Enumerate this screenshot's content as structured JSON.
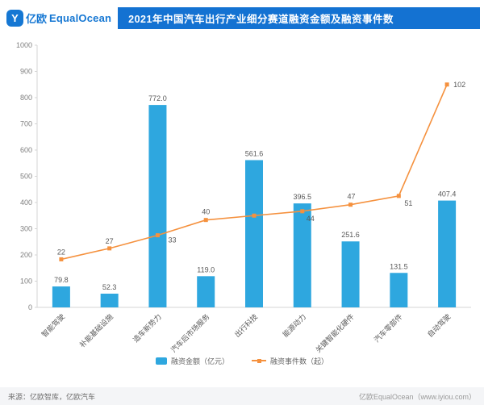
{
  "header": {
    "logo": {
      "icon_glyph": "Y",
      "brand_cn": "亿欧",
      "brand_en": "EqualOcean"
    },
    "banner_title": "2021年中国汽车出行产业细分赛道融资金额及融资事件数"
  },
  "chart_data": {
    "type": "bar+line",
    "title": "2021年中国汽车出行产业细分赛道融资金额及融资事件数",
    "categories": [
      "智能驾驶",
      "补能基础设施",
      "造车新势力",
      "汽车后市场服务",
      "出行科技",
      "能源动力",
      "关键智能化硬件",
      "汽车零部件",
      "自动驾驶"
    ],
    "series": [
      {
        "name": "融资金额（亿元）",
        "type": "bar",
        "color": "#2EA7DF",
        "values": [
          79.8,
          52.3,
          772.0,
          119.0,
          561.6,
          396.5,
          251.6,
          131.5,
          407.4
        ],
        "labels": [
          "79.8",
          "52.3",
          "772.0",
          "119.0",
          "561.6",
          "396.5",
          "251.6",
          "131.5",
          "407.4"
        ]
      },
      {
        "name": "融资事件数（起）",
        "type": "line",
        "color": "#F5913E",
        "values": [
          22,
          27,
          33,
          40,
          42,
          44,
          47,
          51,
          102
        ],
        "labels": [
          "22",
          "27",
          "33",
          "40",
          "",
          "44",
          "47",
          "51",
          "102"
        ]
      }
    ],
    "xlabel": "",
    "ylabel": "",
    "ylim": [
      0,
      1000
    ],
    "y_ticks": [
      0,
      100,
      200,
      300,
      400,
      500,
      600,
      700,
      800,
      900,
      1000
    ],
    "ylim2": [
      0,
      120
    ],
    "grid": false,
    "legend_position": "bottom"
  },
  "footer": {
    "source": "来源：亿欧智库，亿欧汽车",
    "credit": "亿欧EqualOcean（www.iyiou.com）"
  }
}
